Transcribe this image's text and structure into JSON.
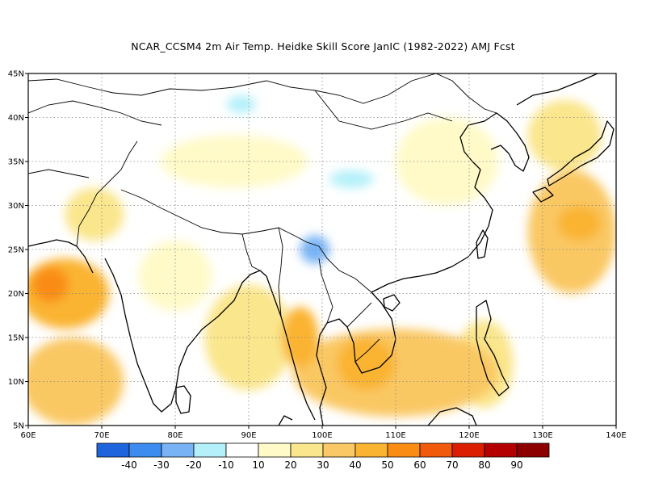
{
  "title": "NCAR_CCSM4  2m Air Temp. Heidke Skill Score JanIC (1982-2022) AMJ Fcst",
  "map": {
    "lon_range": [
      60,
      140
    ],
    "lat_range": [
      5,
      45
    ],
    "x_ticks": [
      "60E",
      "70E",
      "80E",
      "90E",
      "100E",
      "110E",
      "120E",
      "130E",
      "140E"
    ],
    "y_ticks": [
      "5N",
      "10N",
      "15N",
      "20N",
      "25N",
      "30N",
      "35N",
      "40N",
      "45N"
    ],
    "grid": "dotted"
  },
  "colorbar": {
    "labels": [
      "-40",
      "-30",
      "-20",
      "-10",
      "10",
      "20",
      "30",
      "40",
      "50",
      "60",
      "70",
      "80",
      "90"
    ],
    "colors": [
      "#1e64dc",
      "#3c8cf0",
      "#78b4f5",
      "#b4f0fa",
      "#ffffff",
      "#fffac8",
      "#fae68c",
      "#fac864",
      "#fab432",
      "#fa8c14",
      "#f05a0a",
      "#dc1e00",
      "#b40000",
      "#8c0000"
    ]
  },
  "regions": [
    {
      "name": "south-china-sea-band",
      "lon": 110,
      "lat": 11,
      "rx": 14,
      "ry": 5,
      "level": 3
    },
    {
      "name": "indochina-core",
      "lon": 106,
      "lat": 12,
      "rx": 4,
      "ry": 3,
      "level": 4
    },
    {
      "name": "myanmar-west-coast",
      "lon": 97,
      "lat": 15,
      "rx": 2.5,
      "ry": 3.5,
      "level": 4
    },
    {
      "name": "arabian-sea",
      "lon": 65,
      "lat": 20,
      "rx": 6,
      "ry": 4,
      "level": 4
    },
    {
      "name": "arabian-sea-core",
      "lon": 63,
      "lat": 21,
      "rx": 2.5,
      "ry": 2,
      "level": 5
    },
    {
      "name": "arabian-sea-south",
      "lon": 66,
      "lat": 10,
      "rx": 7,
      "ry": 5,
      "level": 3
    },
    {
      "name": "bay-of-bengal",
      "lon": 90,
      "lat": 15,
      "rx": 6,
      "ry": 6,
      "level": 2
    },
    {
      "name": "western-pacific",
      "lon": 134,
      "lat": 27,
      "rx": 6,
      "ry": 7,
      "level": 3
    },
    {
      "name": "western-pacific-core",
      "lon": 135,
      "lat": 28,
      "rx": 3,
      "ry": 2,
      "level": 4
    },
    {
      "name": "pakistan",
      "lon": 69,
      "lat": 29,
      "rx": 4,
      "ry": 3,
      "level": 2
    },
    {
      "name": "yunnan-negative",
      "lon": 99,
      "lat": 25,
      "rx": 2,
      "ry": 1.6,
      "level": -2
    },
    {
      "name": "tibet-negative",
      "lon": 104,
      "lat": 33,
      "rx": 3,
      "ry": 1,
      "level": -1
    },
    {
      "name": "tarim-negative",
      "lon": 89,
      "lat": 41.5,
      "rx": 2,
      "ry": 1,
      "level": -1
    },
    {
      "name": "philippines",
      "lon": 122,
      "lat": 12,
      "rx": 4,
      "ry": 5,
      "level": 2
    },
    {
      "name": "japan-sea",
      "lon": 133,
      "lat": 38,
      "rx": 5,
      "ry": 4,
      "level": 2
    },
    {
      "name": "east-asia",
      "lon": 117,
      "lat": 35,
      "rx": 7,
      "ry": 5,
      "level": 1
    },
    {
      "name": "central-india",
      "lon": 80,
      "lat": 22,
      "rx": 5,
      "ry": 4,
      "level": 1
    },
    {
      "name": "tibet-plateau",
      "lon": 88,
      "lat": 35,
      "rx": 10,
      "ry": 3,
      "level": 1
    }
  ]
}
